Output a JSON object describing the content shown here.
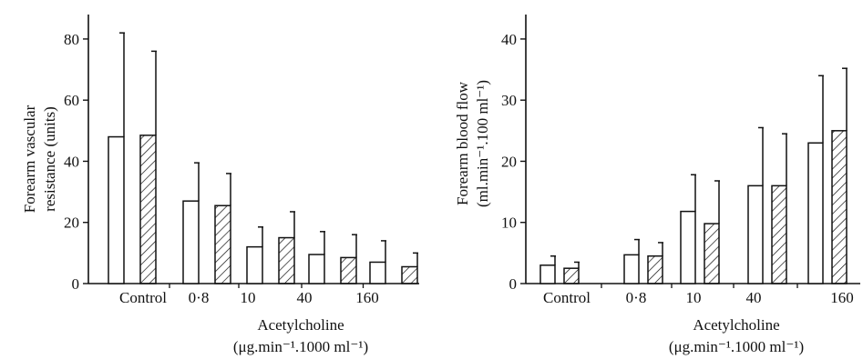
{
  "chart_data": [
    {
      "type": "bar",
      "ylabel_lines": [
        "Forearm vascular",
        "resistance (units)"
      ],
      "xlabel": "Acetylcholine",
      "xlabel_units": "(μg.min⁻¹.1000 ml⁻¹)",
      "categories": [
        "Control",
        "0·8",
        "10",
        "40",
        "160"
      ],
      "yticks": [
        "0",
        "20",
        "40",
        "60",
        "80"
      ],
      "ylim": [
        0,
        88
      ],
      "series": [
        {
          "pattern": "open",
          "values": [
            48,
            27,
            12,
            9.5,
            7
          ],
          "errors": [
            34,
            12.5,
            6.5,
            7.5,
            7
          ]
        },
        {
          "pattern": "hatched",
          "values": [
            48.5,
            25.5,
            15,
            8.5,
            5.5
          ],
          "errors": [
            27.5,
            10.5,
            8.5,
            7.5,
            4.5
          ]
        }
      ],
      "grid": false
    },
    {
      "type": "bar",
      "ylabel_lines": [
        "Forearm blood flow",
        "(ml.min⁻¹.100 ml⁻¹)"
      ],
      "xlabel": "Acetylcholine",
      "xlabel_units": "(μg.min⁻¹.1000 ml⁻¹)",
      "categories": [
        "Control",
        "0·8",
        "10",
        "40",
        "160"
      ],
      "yticks": [
        "0",
        "10",
        "20",
        "30",
        "40"
      ],
      "ylim": [
        0,
        44
      ],
      "series": [
        {
          "pattern": "open",
          "values": [
            3,
            4.7,
            11.8,
            16,
            23
          ],
          "errors": [
            1.5,
            2.5,
            6,
            9.5,
            11
          ]
        },
        {
          "pattern": "hatched",
          "values": [
            2.5,
            4.5,
            9.8,
            16,
            25
          ],
          "errors": [
            1,
            2.2,
            7,
            8.5,
            10.2
          ]
        }
      ],
      "grid": false
    }
  ]
}
